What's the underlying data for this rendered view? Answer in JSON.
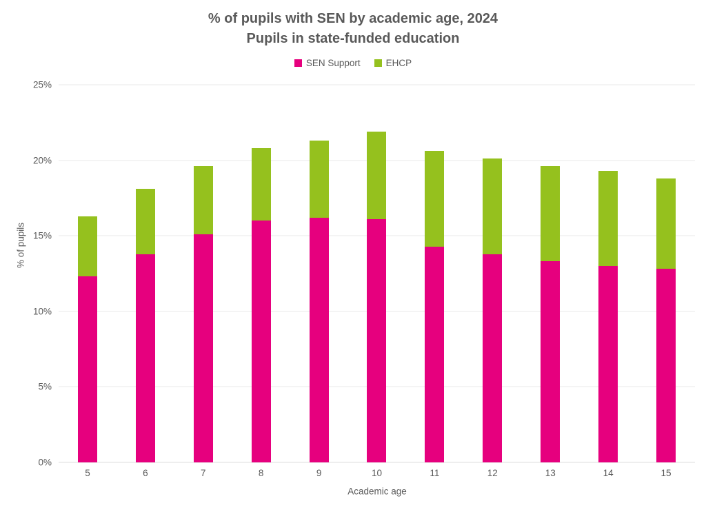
{
  "colors": {
    "title_text": "#595959",
    "axis_text": "#595959",
    "gridline": "#e8e8e8",
    "background": "#ffffff"
  },
  "chart_data": {
    "type": "bar",
    "stacked": true,
    "title": "% of pupils with SEN by academic age, 2024",
    "subtitle": "Pupils in state-funded education",
    "xlabel": "Academic age",
    "ylabel": "% of pupils",
    "categories": [
      "5",
      "6",
      "7",
      "8",
      "9",
      "10",
      "11",
      "12",
      "13",
      "14",
      "15"
    ],
    "series": [
      {
        "name": "SEN Support",
        "color": "#E6007E",
        "values": [
          12.3,
          13.8,
          15.1,
          16.0,
          16.2,
          16.1,
          14.3,
          13.8,
          13.3,
          13.0,
          12.8
        ]
      },
      {
        "name": "EHCP",
        "color": "#95C11E",
        "values": [
          4.0,
          4.3,
          4.5,
          4.8,
          5.1,
          5.8,
          6.3,
          6.3,
          6.3,
          6.3,
          6.0
        ]
      }
    ],
    "totals": [
      16.3,
      18.1,
      19.6,
      20.8,
      21.3,
      21.9,
      20.6,
      20.1,
      19.6,
      19.3,
      18.8
    ],
    "ylim": [
      0,
      25
    ],
    "yticks": [
      {
        "value": 0,
        "label": "0%"
      },
      {
        "value": 5,
        "label": "5%"
      },
      {
        "value": 10,
        "label": "10%"
      },
      {
        "value": 15,
        "label": "15%"
      },
      {
        "value": 20,
        "label": "20%"
      },
      {
        "value": 25,
        "label": "25%"
      }
    ],
    "grid": true,
    "legend_position": "top"
  }
}
